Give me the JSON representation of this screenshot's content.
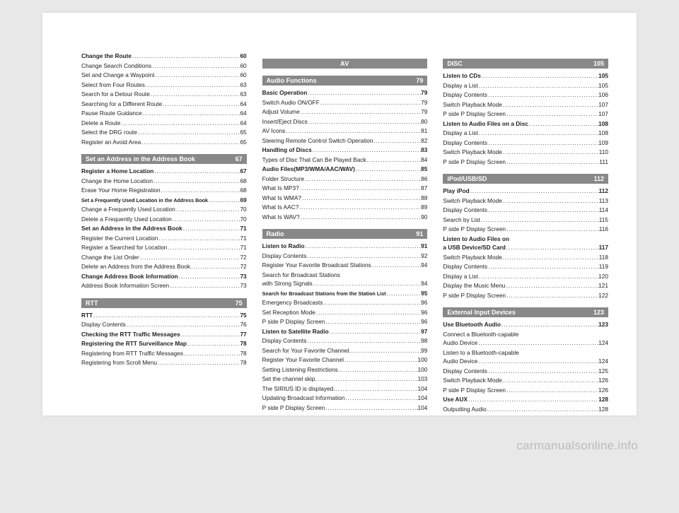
{
  "watermark": "carmanualsonline.info",
  "columns": [
    {
      "groups": [
        {
          "entries": [
            {
              "label": "Change the Route",
              "page": "60",
              "bold": true
            },
            {
              "label": "Change Search Conditions",
              "page": "60"
            },
            {
              "label": "Set and Change a Waypoint",
              "page": "60"
            },
            {
              "label": "Select from Four Routes",
              "page": "63"
            },
            {
              "label": "Search for a Detour Route",
              "page": "63"
            },
            {
              "label": "Searching for a Different Route",
              "page": "64"
            },
            {
              "label": "Pause Route Guidance",
              "page": "64"
            },
            {
              "label": "Delete a Route",
              "page": "64"
            },
            {
              "label": "Select the DRG route",
              "page": "65"
            },
            {
              "label": "Register an Avoid Area",
              "page": "65"
            }
          ]
        },
        {
          "header": {
            "title": "Set an Address in the Address Book",
            "page": "67"
          },
          "entries": [
            {
              "label": "Register a Home Location",
              "page": "67",
              "bold": true
            },
            {
              "label": "Change the Home Location",
              "page": "68"
            },
            {
              "label": "Erase Your Home Registration",
              "page": "68"
            },
            {
              "label": "Set a Frequently Used Location in the Address Book",
              "page": "69",
              "tiny": true
            },
            {
              "label": "Change a Frequently Used Location",
              "page": "70"
            },
            {
              "label": "Delete a Frequently Used Location",
              "page": "70"
            },
            {
              "label": "Set an Address in the Address Book",
              "page": "71",
              "bold": true
            },
            {
              "label": "Register the Current Location",
              "page": "71"
            },
            {
              "label": "Register a Searched for Location",
              "page": "71"
            },
            {
              "label": "Change the List Order",
              "page": "72"
            },
            {
              "label": "Delete an Address from the Address Book",
              "page": "72"
            },
            {
              "label": "Change Address Book Information",
              "page": "73",
              "bold": true
            },
            {
              "label": "Address Book Information Screen",
              "page": "73"
            }
          ]
        },
        {
          "header": {
            "title": "RTT",
            "page": "75"
          },
          "entries": [
            {
              "label": "RTT",
              "page": "75",
              "bold": true
            },
            {
              "label": "Display Contents",
              "page": "76"
            },
            {
              "label": "Checking the RTT Traffic Messages",
              "page": "77",
              "bold": true
            },
            {
              "label": "Registering the RTT Surveillance Map",
              "page": "78",
              "bold": true
            },
            {
              "label": "Registering from RTT Traffic Messages",
              "page": "78"
            },
            {
              "label": "Registering from Scroll Menu",
              "page": "78"
            }
          ]
        }
      ]
    },
    {
      "groups": [
        {
          "header": {
            "title": "AV",
            "centered": true
          },
          "entries": []
        },
        {
          "header": {
            "title": "Audio Functions",
            "page": "79"
          },
          "entries": [
            {
              "label": "Basic Operation",
              "page": "79",
              "bold": true
            },
            {
              "label": "Switch Audio ON/OFF",
              "page": "79"
            },
            {
              "label": "Adjust Volume",
              "page": "79"
            },
            {
              "label": "Insert/Eject Discs",
              "page": "80"
            },
            {
              "label": "AV Icons",
              "page": "81"
            },
            {
              "label": "Steering Remote Control Switch Operation",
              "page": "82"
            },
            {
              "label": "Handling of Discs",
              "page": "83",
              "bold": true
            },
            {
              "label": "Types of Disc That Can Be Played Back",
              "page": "84"
            },
            {
              "label": "Audio Files(MP3/WMA/AAC/WAV)",
              "page": "85",
              "bold": true
            },
            {
              "label": "Folder Structure",
              "page": "86"
            },
            {
              "label": "What Is MP3?",
              "page": "87"
            },
            {
              "label": "What Is WMA?",
              "page": "88"
            },
            {
              "label": "What Is AAC?",
              "page": "89"
            },
            {
              "label": "What Is WAV?",
              "page": "90"
            }
          ]
        },
        {
          "header": {
            "title": "Radio",
            "page": "91"
          },
          "entries": [
            {
              "label": "Listen to Radio",
              "page": "91",
              "bold": true
            },
            {
              "label": "Display Contents",
              "page": "92"
            },
            {
              "label": "Register Your Favorite Broadcast Stations",
              "page": "94"
            },
            {
              "label": "Search for Broadcast Stations",
              "nopagebreak": true
            },
            {
              "label": "with Strong Signals",
              "page": "94",
              "continuation": true
            },
            {
              "label": "Search for Broadcast Stations from the Station List",
              "page": "95",
              "tiny": true
            },
            {
              "label": "Emergency Broadcasts",
              "page": "96"
            },
            {
              "label": "Set Reception Mode",
              "page": "96"
            },
            {
              "label": "P side P Display Screen",
              "page": "96"
            },
            {
              "label": "Listen to Satellite Radio",
              "page": "97",
              "bold": true
            },
            {
              "label": "Display Contents",
              "page": "98"
            },
            {
              "label": "Search for Your Favorite Channel.",
              "page": "99"
            },
            {
              "label": "Register Your Favorite Channel",
              "page": "100"
            },
            {
              "label": "Setting Listening Restrictions",
              "page": "100"
            },
            {
              "label": "Set the channel skip.",
              "page": "103"
            },
            {
              "label": "The SIRIUS ID is displayed.",
              "page": "104"
            },
            {
              "label": "Updating Broadcast Information",
              "page": "104"
            },
            {
              "label": "P side P Display Screen",
              "page": "104"
            }
          ]
        }
      ]
    },
    {
      "groups": [
        {
          "header": {
            "title": "DISC",
            "page": "105"
          },
          "entries": [
            {
              "label": "Listen to CDs",
              "page": "105",
              "bold": true
            },
            {
              "label": "Display a List",
              "page": "105"
            },
            {
              "label": "Display Contents",
              "page": "106"
            },
            {
              "label": "Switch Playback Mode",
              "page": "107"
            },
            {
              "label": "P side P Display Screen",
              "page": "107"
            },
            {
              "label": "Listen to Audio Files on a Disc",
              "page": "108",
              "bold": true
            },
            {
              "label": "Display a List",
              "page": "108"
            },
            {
              "label": "Display Contents",
              "page": "109"
            },
            {
              "label": "Switch Playback Mode",
              "page": "110"
            },
            {
              "label": "P side P Display Screen",
              "page": "111"
            }
          ]
        },
        {
          "header": {
            "title": "iPod/USB/SD",
            "page": "112"
          },
          "entries": [
            {
              "label": "Play iPod",
              "page": "112",
              "bold": true
            },
            {
              "label": "Switch Playback Mode",
              "page": "113"
            },
            {
              "label": "Display Contents",
              "page": "114"
            },
            {
              "label": "Search by List",
              "page": "115"
            },
            {
              "label": "P side P Display Screen",
              "page": "116"
            },
            {
              "label": "Listen to Audio Files on",
              "nopagebreak": true,
              "bold": true
            },
            {
              "label": "a USB Device/SD Card",
              "page": "117",
              "bold": true,
              "continuation": true
            },
            {
              "label": "Switch Playback Mode",
              "page": "118"
            },
            {
              "label": "Display Contents",
              "page": "119"
            },
            {
              "label": "Display a List",
              "page": "120"
            },
            {
              "label": "Display the Music Menu",
              "page": "121"
            },
            {
              "label": "P side P Display Screen",
              "page": "122"
            }
          ]
        },
        {
          "header": {
            "title": "External Input Devices",
            "page": "123"
          },
          "entries": [
            {
              "label": "Use Bluetooth Audio",
              "page": "123",
              "bold": true
            },
            {
              "label": "Connect a Bluetooth-capable",
              "nopagebreak": true
            },
            {
              "label": "Audio Device",
              "page": "124",
              "continuation": true
            },
            {
              "label": "Listen to a Bluetooth-capable",
              "nopagebreak": true
            },
            {
              "label": "Audio Device",
              "page": "124",
              "continuation": true
            },
            {
              "label": "Display Contents",
              "page": "125"
            },
            {
              "label": "Switch Playback Mode",
              "page": "126"
            },
            {
              "label": "P side P Display Screen",
              "page": "126"
            },
            {
              "label": "Use AUX",
              "page": "128",
              "bold": true
            },
            {
              "label": "Outputting Audio",
              "page": "128"
            }
          ]
        }
      ]
    }
  ]
}
